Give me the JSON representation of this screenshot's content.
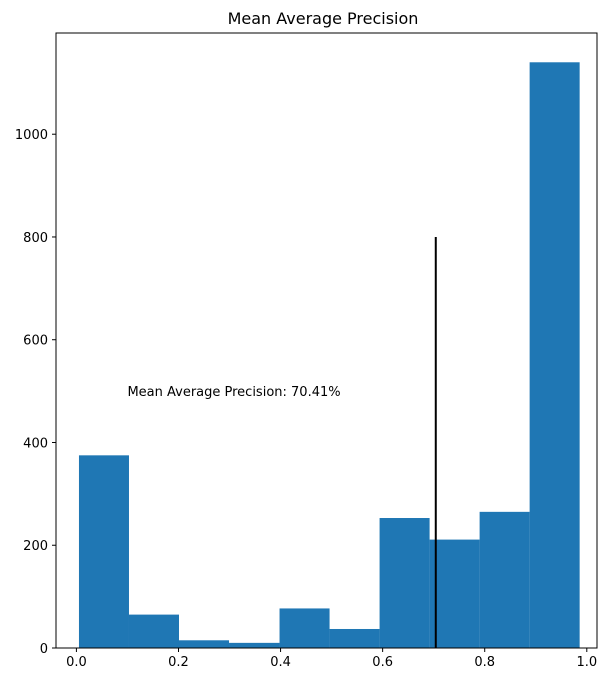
{
  "chart_data": {
    "type": "bar",
    "title": "Mean Average Precision",
    "xlabel": "",
    "ylabel": "",
    "xlim": [
      -0.04,
      1.02
    ],
    "ylim": [
      0,
      1197
    ],
    "xticks": [
      0.0,
      0.2,
      0.4,
      0.6,
      0.8,
      1.0
    ],
    "xtick_labels": [
      "0.0",
      "0.2",
      "0.4",
      "0.6",
      "0.8",
      "1.0"
    ],
    "yticks": [
      0,
      200,
      400,
      600,
      800,
      1000
    ],
    "ytick_labels": [
      "0",
      "200",
      "400",
      "600",
      "800",
      "1000"
    ],
    "grid": false,
    "bins": [
      {
        "start": 0.005,
        "end": 0.103,
        "value": 375
      },
      {
        "start": 0.103,
        "end": 0.201,
        "value": 65
      },
      {
        "start": 0.201,
        "end": 0.299,
        "value": 15
      },
      {
        "start": 0.299,
        "end": 0.398,
        "value": 10
      },
      {
        "start": 0.398,
        "end": 0.496,
        "value": 77
      },
      {
        "start": 0.496,
        "end": 0.594,
        "value": 37
      },
      {
        "start": 0.594,
        "end": 0.692,
        "value": 253
      },
      {
        "start": 0.692,
        "end": 0.79,
        "value": 211
      },
      {
        "start": 0.79,
        "end": 0.888,
        "value": 265
      },
      {
        "start": 0.888,
        "end": 0.986,
        "value": 1140
      }
    ],
    "bar_color": "#1f77b4",
    "vline": {
      "x": 0.7041,
      "ymin": 0,
      "ymax": 800,
      "color": "#000000"
    },
    "annotation": {
      "text": "Mean Average Precision: 70.41%",
      "x": 0.1,
      "y": 500
    }
  }
}
